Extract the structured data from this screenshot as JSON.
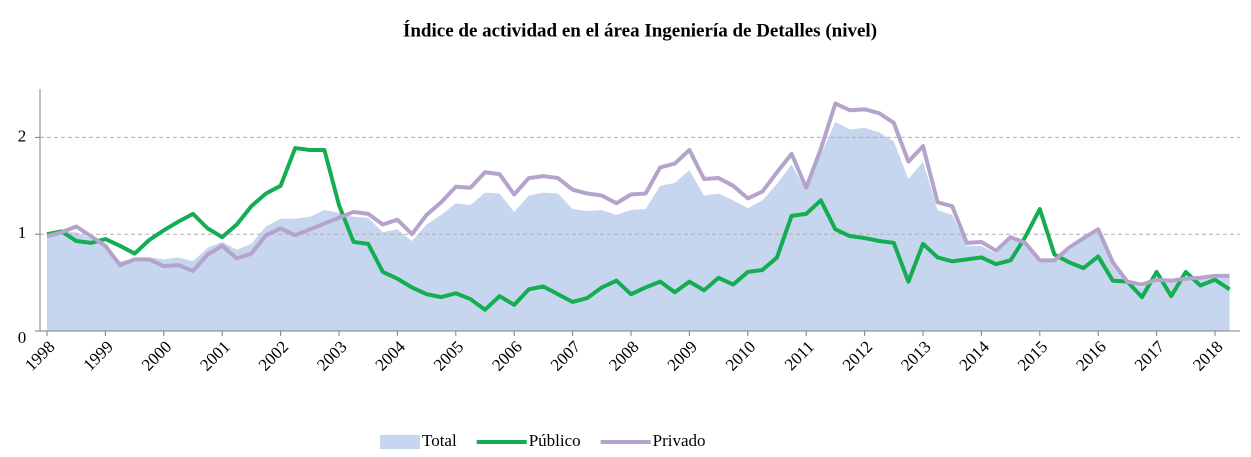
{
  "chart_data": {
    "type": "line",
    "title": "Índice de actividad  en el área Ingeniería de Detalles (nivel)",
    "categories": [
      "1998",
      null,
      null,
      null,
      "1999",
      null,
      null,
      null,
      "2000",
      null,
      null,
      null,
      "2001",
      null,
      null,
      null,
      "2002",
      null,
      null,
      null,
      "2003",
      null,
      null,
      null,
      "2004",
      null,
      null,
      null,
      "2005",
      null,
      null,
      null,
      "2006",
      null,
      null,
      null,
      "2007",
      null,
      null,
      null,
      "2008",
      null,
      null,
      null,
      "2009",
      null,
      null,
      null,
      "2010",
      null,
      null,
      null,
      "2011",
      null,
      null,
      null,
      "2012",
      null,
      null,
      null,
      "2013",
      null,
      null,
      null,
      "2014",
      null,
      null,
      null,
      "2015",
      null,
      null,
      null,
      "2016",
      null,
      null,
      null,
      "2017",
      null,
      null,
      null,
      "2018",
      null
    ],
    "ylim": [
      0,
      2.5
    ],
    "yticks": [
      0,
      1,
      2
    ],
    "grid": true,
    "legend": "bottom",
    "series": [
      {
        "name": "Total",
        "style": "area",
        "color": "#c6d6ee",
        "values": [
          1.0,
          1.03,
          1.02,
          0.96,
          0.88,
          0.72,
          0.75,
          0.76,
          0.74,
          0.76,
          0.72,
          0.86,
          0.92,
          0.84,
          0.9,
          1.08,
          1.16,
          1.16,
          1.18,
          1.25,
          1.22,
          1.18,
          1.17,
          1.02,
          1.05,
          0.93,
          1.1,
          1.2,
          1.32,
          1.3,
          1.43,
          1.42,
          1.23,
          1.4,
          1.43,
          1.42,
          1.26,
          1.24,
          1.25,
          1.2,
          1.25,
          1.26,
          1.5,
          1.53,
          1.66,
          1.4,
          1.42,
          1.35,
          1.27,
          1.35,
          1.52,
          1.72,
          1.45,
          1.82,
          2.16,
          2.08,
          2.1,
          2.05,
          1.96,
          1.57,
          1.75,
          1.25,
          1.2,
          0.88,
          0.88,
          0.8,
          0.95,
          0.9,
          0.73,
          0.73,
          0.83,
          0.94,
          1.02,
          0.67,
          0.5,
          0.45,
          0.53,
          0.5,
          0.54,
          0.53,
          0.55,
          0.55
        ]
      },
      {
        "name": "Público",
        "style": "line",
        "color": "#14ad52",
        "values": [
          1.0,
          1.03,
          0.93,
          0.91,
          0.95,
          0.88,
          0.8,
          0.94,
          1.04,
          1.13,
          1.21,
          1.06,
          0.97,
          1.1,
          1.29,
          1.42,
          1.5,
          1.89,
          1.87,
          1.87,
          1.3,
          0.92,
          0.9,
          0.61,
          0.54,
          0.45,
          0.38,
          0.35,
          0.39,
          0.33,
          0.22,
          0.36,
          0.27,
          0.43,
          0.46,
          0.38,
          0.3,
          0.34,
          0.45,
          0.52,
          0.38,
          0.45,
          0.51,
          0.4,
          0.51,
          0.42,
          0.55,
          0.48,
          0.61,
          0.63,
          0.76,
          1.19,
          1.21,
          1.35,
          1.05,
          0.98,
          0.96,
          0.93,
          0.91,
          0.51,
          0.9,
          0.76,
          0.72,
          0.74,
          0.76,
          0.69,
          0.73,
          0.97,
          1.26,
          0.79,
          0.71,
          0.65,
          0.77,
          0.52,
          0.51,
          0.35,
          0.61,
          0.36,
          0.61,
          0.47,
          0.53,
          0.43
        ]
      },
      {
        "name": "Privado",
        "style": "line",
        "color": "#b4a3cb",
        "values": [
          0.98,
          1.02,
          1.08,
          0.98,
          0.88,
          0.68,
          0.74,
          0.74,
          0.67,
          0.68,
          0.62,
          0.79,
          0.88,
          0.75,
          0.8,
          0.99,
          1.06,
          0.99,
          1.05,
          1.11,
          1.17,
          1.23,
          1.21,
          1.1,
          1.15,
          1.0,
          1.2,
          1.33,
          1.49,
          1.48,
          1.64,
          1.62,
          1.41,
          1.58,
          1.6,
          1.58,
          1.46,
          1.42,
          1.4,
          1.32,
          1.41,
          1.42,
          1.69,
          1.73,
          1.87,
          1.57,
          1.58,
          1.5,
          1.37,
          1.44,
          1.64,
          1.83,
          1.48,
          1.88,
          2.35,
          2.28,
          2.29,
          2.25,
          2.15,
          1.75,
          1.91,
          1.33,
          1.29,
          0.91,
          0.92,
          0.83,
          0.97,
          0.91,
          0.73,
          0.73,
          0.86,
          0.96,
          1.05,
          0.71,
          0.51,
          0.48,
          0.53,
          0.52,
          0.54,
          0.55,
          0.57,
          0.57
        ]
      }
    ]
  }
}
